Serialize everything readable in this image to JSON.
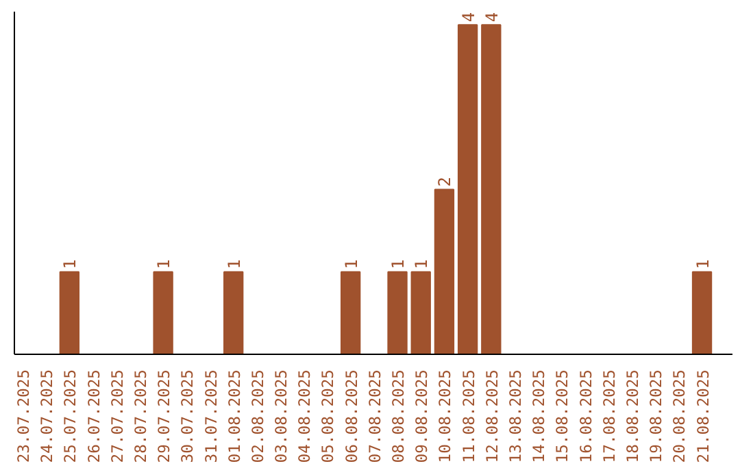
{
  "chart_data": {
    "type": "bar",
    "categories": [
      "23.07.2025",
      "24.07.2025",
      "25.07.2025",
      "26.07.2025",
      "27.07.2025",
      "28.07.2025",
      "29.07.2025",
      "30.07.2025",
      "31.07.2025",
      "01.08.2025",
      "02.08.2025",
      "03.08.2025",
      "04.08.2025",
      "05.08.2025",
      "06.08.2025",
      "07.08.2025",
      "08.08.2025",
      "09.08.2025",
      "10.08.2025",
      "11.08.2025",
      "12.08.2025",
      "13.08.2025",
      "14.08.2025",
      "15.08.2025",
      "16.08.2025",
      "17.08.2025",
      "18.08.2025",
      "19.08.2025",
      "20.08.2025",
      "21.08.2025"
    ],
    "values": [
      0,
      0,
      1,
      0,
      0,
      0,
      1,
      0,
      0,
      1,
      0,
      0,
      0,
      0,
      1,
      0,
      1,
      1,
      2,
      4,
      4,
      0,
      0,
      0,
      0,
      0,
      0,
      0,
      0,
      1
    ],
    "value_labels": [
      null,
      null,
      "1",
      null,
      null,
      null,
      "1",
      null,
      null,
      "1",
      null,
      null,
      null,
      null,
      "1",
      null,
      "1",
      "1",
      "2",
      "4",
      "4",
      null,
      null,
      null,
      null,
      null,
      null,
      null,
      null,
      "1"
    ],
    "color": "#a0522d",
    "grid": false
  }
}
